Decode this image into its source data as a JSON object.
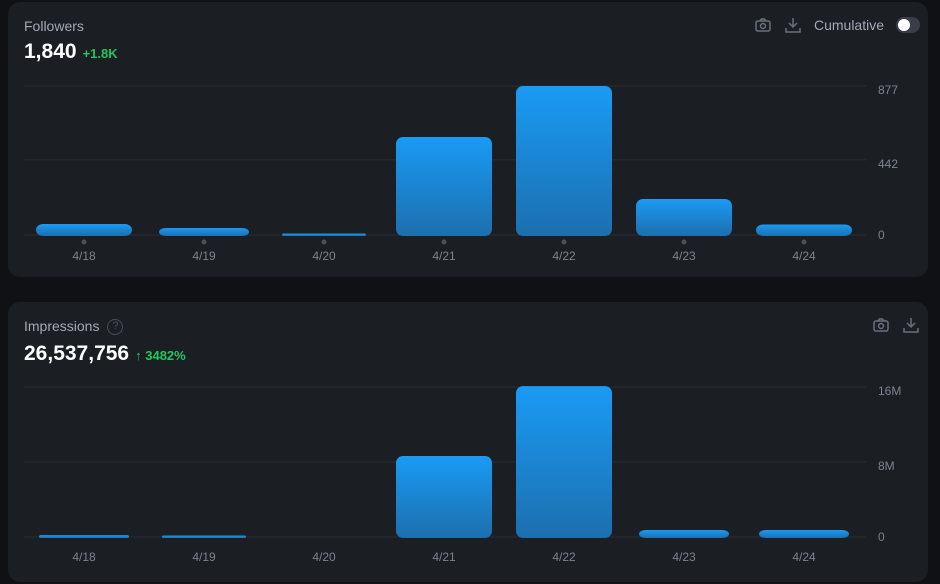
{
  "colors": {
    "bar_top": "#1a9bf5",
    "bar_bottom": "#1c6fae",
    "positive": "#22c55e"
  },
  "followers": {
    "title": "Followers",
    "value": "1,840",
    "delta": "+1.8K",
    "cumulative_label": "Cumulative",
    "cumulative_on": false,
    "icons": [
      "camera-icon",
      "download-icon"
    ]
  },
  "impressions": {
    "title": "Impressions",
    "help": "?",
    "value": "26,537,756",
    "delta_arrow": "↑",
    "delta": "3482%",
    "icons": [
      "camera-icon",
      "download-icon"
    ]
  },
  "chart_data": [
    {
      "type": "bar",
      "title": "Followers",
      "categories": [
        "4/18",
        "4/19",
        "4/20",
        "4/21",
        "4/22",
        "4/23",
        "4/24"
      ],
      "values": [
        65,
        41,
        6,
        577,
        877,
        212,
        62
      ],
      "yticks": [
        0,
        442,
        877
      ],
      "ytick_labels": [
        "0",
        "442",
        "877"
      ],
      "ylim": [
        0,
        877
      ]
    },
    {
      "type": "bar",
      "title": "Impressions",
      "categories": [
        "4/18",
        "4/19",
        "4/20",
        "4/21",
        "4/22",
        "4/23",
        "4/24"
      ],
      "values": [
        200000,
        100000,
        0,
        8640000,
        16100000,
        750000,
        750000
      ],
      "yticks": [
        0,
        8000000,
        16000000
      ],
      "ytick_labels": [
        "0",
        "8M",
        "16M"
      ],
      "ylim": [
        0,
        16000000
      ]
    }
  ]
}
